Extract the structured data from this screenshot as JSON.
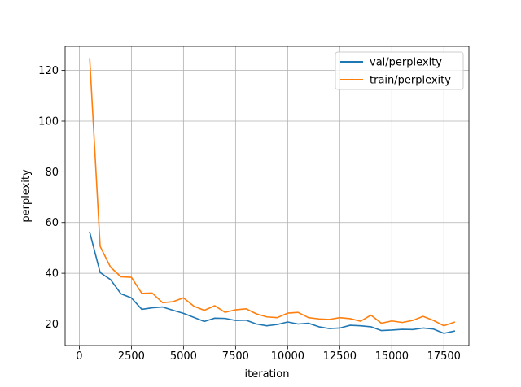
{
  "chart_data": {
    "type": "line",
    "title": "",
    "xlabel": "iteration",
    "ylabel": "perplexity",
    "xlim": [
      -680,
      18700
    ],
    "ylim": [
      11.5,
      129.5
    ],
    "xticks": [
      0,
      2500,
      5000,
      7500,
      10000,
      12500,
      15000,
      17500
    ],
    "yticks": [
      20,
      40,
      60,
      80,
      100,
      120
    ],
    "grid": true,
    "legend_position": "top-right",
    "series": [
      {
        "name": "val/perplexity",
        "color": "#1f77b4",
        "x": [
          500,
          1000,
          1500,
          2000,
          2500,
          3000,
          3500,
          4000,
          4500,
          5000,
          5500,
          6000,
          6500,
          7000,
          7500,
          8000,
          8500,
          9000,
          9500,
          10000,
          10500,
          11000,
          11500,
          12000,
          12500,
          13000,
          13500,
          14000,
          14500,
          15000,
          15500,
          16000,
          16500,
          17000,
          17500,
          18000
        ],
        "y": [
          56.2,
          40.3,
          37.5,
          31.9,
          30.3,
          25.8,
          26.4,
          26.7,
          25.4,
          24.2,
          22.6,
          21.0,
          22.3,
          22.2,
          21.4,
          21.5,
          20.0,
          19.3,
          19.8,
          20.8,
          20.0,
          20.3,
          18.9,
          18.2,
          18.4,
          19.5,
          19.3,
          18.9,
          17.4,
          17.6,
          17.9,
          17.8,
          18.4,
          18.0,
          16.3,
          17.2
        ]
      },
      {
        "name": "train/perplexity",
        "color": "#ff7f0e",
        "x": [
          500,
          1000,
          1500,
          2000,
          2500,
          3000,
          3500,
          4000,
          4500,
          5000,
          5500,
          6000,
          6500,
          7000,
          7500,
          8000,
          8500,
          9000,
          9500,
          10000,
          10500,
          11000,
          11500,
          12000,
          12500,
          13000,
          13500,
          14000,
          14500,
          15000,
          15500,
          16000,
          16500,
          17000,
          17500,
          18000
        ],
        "y": [
          124.6,
          50.6,
          42.4,
          38.6,
          38.4,
          32.1,
          32.2,
          28.4,
          28.8,
          30.3,
          27.0,
          25.4,
          27.2,
          24.6,
          25.6,
          26.0,
          24.0,
          22.8,
          22.5,
          24.3,
          24.6,
          22.5,
          22.0,
          21.8,
          22.5,
          22.1,
          21.1,
          23.5,
          20.3,
          21.2,
          20.6,
          21.4,
          23.0,
          21.4,
          19.3,
          20.7
        ]
      }
    ]
  }
}
